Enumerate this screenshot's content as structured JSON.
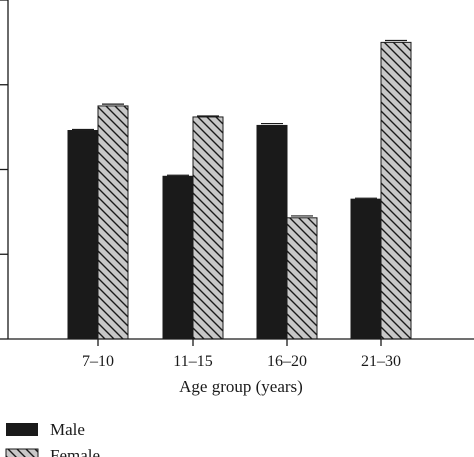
{
  "chart_data": {
    "type": "bar",
    "categories": [
      "7–10",
      "11–15",
      "16–20",
      "21–30"
    ],
    "series": [
      {
        "name": "Male",
        "values": [
          2.46,
          1.92,
          2.52,
          1.65
        ],
        "errors": [
          0,
          0,
          0.01,
          0
        ],
        "fill": "#1a1a1a",
        "pattern": "solid"
      },
      {
        "name": "Female",
        "values": [
          2.75,
          2.62,
          1.43,
          3.5
        ],
        "errors": [
          0.01,
          0,
          0.01,
          0.01
        ],
        "fill": "#c8c8c8",
        "pattern": "diagonal-hatch"
      }
    ],
    "xlabel": "Age group (years)",
    "ylabel": "",
    "ylim": [
      0,
      4
    ],
    "yticks": [
      0,
      1,
      2,
      3,
      4
    ],
    "grid": false,
    "legend_position": "bottom-left"
  }
}
